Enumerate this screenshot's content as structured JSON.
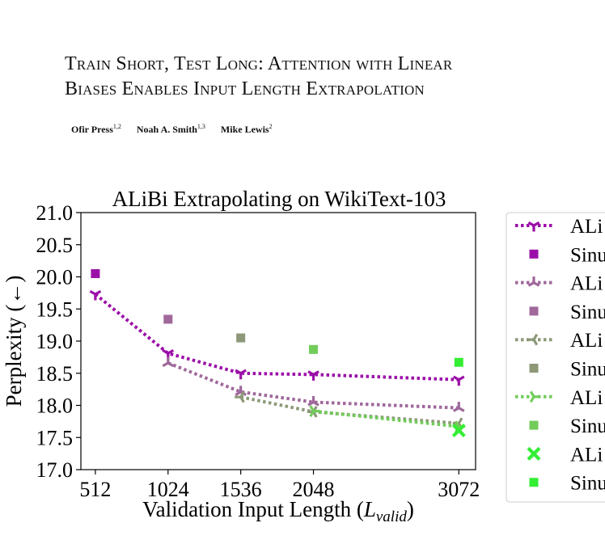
{
  "paper": {
    "title_line1": "Train Short, Test Long: Attention with Linear",
    "title_line2": "Biases Enables Input Length Extrapolation",
    "authors": [
      {
        "name": "Ofir Press",
        "affil": "1,2"
      },
      {
        "name": "Noah A. Smith",
        "affil": "1,3"
      },
      {
        "name": "Mike Lewis",
        "affil": "2"
      }
    ]
  },
  "chart_data": {
    "type": "line",
    "title": "ALiBi Extrapolating on WikiText-103",
    "xlabel": "Validation Input Length (",
    "xlabel_var": "L",
    "xlabel_sub": "valid",
    "xlabel_close": ")",
    "ylabel": "Perplexity (←)",
    "x_ticks": [
      512,
      1024,
      1536,
      2048,
      3072
    ],
    "y_ticks": [
      "17.0",
      "17.5",
      "18.0",
      "18.5",
      "19.0",
      "19.5",
      "20.0",
      "20.5",
      "21.0"
    ],
    "xlim": [
      410,
      3190
    ],
    "ylim": [
      17.0,
      21.0
    ],
    "grid": false,
    "legend_position": "right, outside plot (clipped)",
    "series": [
      {
        "name": "ALi",
        "kind": "line",
        "marker": "tri_down",
        "color": "#9b0fa8",
        "x": [
          512,
          1024,
          1536,
          2048,
          3072
        ],
        "y": [
          19.73,
          18.81,
          18.5,
          18.48,
          18.4
        ]
      },
      {
        "name": "Sinu",
        "kind": "point",
        "marker": "square",
        "color": "#9b0fa8",
        "x": [
          512
        ],
        "y": [
          20.05
        ]
      },
      {
        "name": "ALi",
        "kind": "line",
        "marker": "tri_up",
        "color": "#a0689b",
        "x": [
          1024,
          1536,
          2048,
          3072
        ],
        "y": [
          18.66,
          18.21,
          18.05,
          17.96
        ]
      },
      {
        "name": "Sinu",
        "kind": "point",
        "marker": "square",
        "color": "#a0689b",
        "x": [
          1024
        ],
        "y": [
          19.34
        ]
      },
      {
        "name": "ALi",
        "kind": "line",
        "marker": "tri_left",
        "color": "#8c9877",
        "x": [
          1536,
          2048,
          3072
        ],
        "y": [
          18.13,
          17.9,
          17.72
        ]
      },
      {
        "name": "Sinu",
        "kind": "point",
        "marker": "square",
        "color": "#8c9877",
        "x": [
          1536
        ],
        "y": [
          19.05
        ]
      },
      {
        "name": "ALi",
        "kind": "line",
        "marker": "tri_right",
        "color": "#72cc5a",
        "x": [
          2048,
          3072
        ],
        "y": [
          17.91,
          17.67
        ]
      },
      {
        "name": "Sinu",
        "kind": "point",
        "marker": "square",
        "color": "#72cc5a",
        "x": [
          2048
        ],
        "y": [
          18.87
        ]
      },
      {
        "name": "ALi",
        "kind": "point",
        "marker": "x",
        "color": "#33ee33",
        "x": [
          3072
        ],
        "y": [
          17.61
        ]
      },
      {
        "name": "Sinu",
        "kind": "point",
        "marker": "square",
        "color": "#33ee33",
        "x": [
          3072
        ],
        "y": [
          18.67
        ]
      }
    ]
  }
}
